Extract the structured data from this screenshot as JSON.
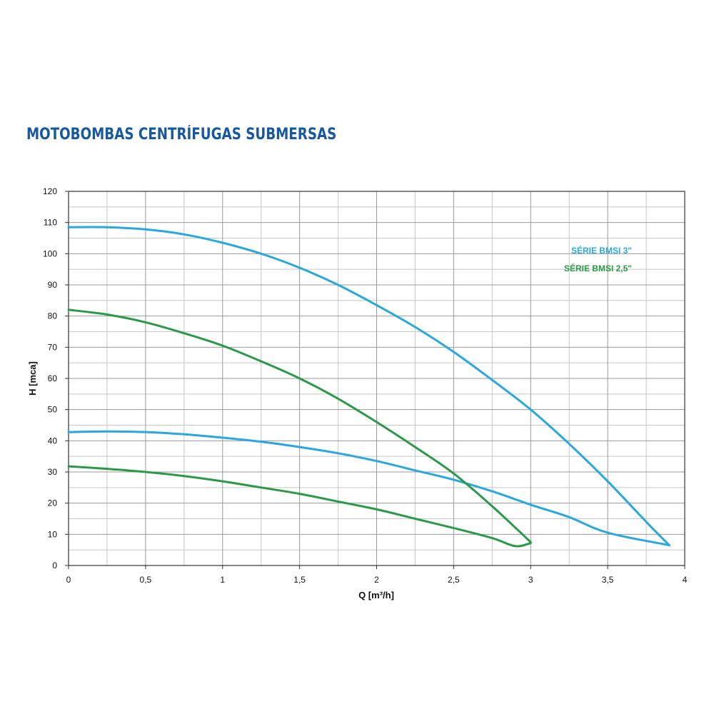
{
  "title": "MOTOBOMBAS CENTRÍFUGAS SUBMERSAS",
  "chart_data": {
    "type": "line",
    "xlabel": "Q [m³/h]",
    "ylabel": "H [mca]",
    "xlim": [
      0,
      4
    ],
    "ylim": [
      0,
      120
    ],
    "x_ticks": [
      0,
      0.5,
      1,
      1.5,
      2,
      2.5,
      3,
      3.5,
      4
    ],
    "x_tick_labels": [
      "0",
      "0,5",
      "1",
      "1,5",
      "2",
      "2,5",
      "3",
      "3,5",
      "4"
    ],
    "y_ticks": [
      0,
      10,
      20,
      30,
      40,
      50,
      60,
      70,
      80,
      90,
      100,
      110,
      120
    ],
    "y_tick_labels": [
      "0",
      "10",
      "20",
      "30",
      "40",
      "50",
      "60",
      "70",
      "80",
      "90",
      "100",
      "110",
      "120"
    ],
    "grid": true,
    "legend_position": "top-right",
    "legend": [
      {
        "label": "SÉRIE BMSI 3\"",
        "color": "#29a8e0"
      },
      {
        "label": "SÉRIE BMSI 2,5\"",
        "color": "#2b9a48"
      }
    ],
    "series": [
      {
        "legend": "SÉRIE BMSI 3\"",
        "color": "#29a8e0",
        "x": [
          0,
          0.25,
          0.5,
          0.75,
          1.0,
          1.25,
          1.5,
          1.75,
          2.0,
          2.25,
          2.5,
          2.75,
          3.0,
          3.25,
          3.5,
          3.75,
          3.9
        ],
        "y": [
          108.5,
          108.5,
          107.8,
          106.2,
          103.5,
          100.0,
          95.5,
          90.0,
          83.5,
          76.5,
          68.5,
          59.5,
          50.0,
          39.0,
          27.0,
          14.0,
          6.5
        ]
      },
      {
        "legend": "SÉRIE BMSI 3\"",
        "color": "#29a8e0",
        "x": [
          0,
          0.25,
          0.5,
          0.75,
          1.0,
          1.25,
          1.5,
          1.75,
          2.0,
          2.25,
          2.5,
          2.75,
          3.0,
          3.25,
          3.5,
          3.9
        ],
        "y": [
          42.8,
          43.0,
          42.8,
          42.1,
          41.0,
          39.7,
          38.0,
          36.0,
          33.5,
          30.5,
          27.5,
          23.8,
          19.5,
          15.5,
          10.5,
          6.5
        ]
      },
      {
        "legend": "SÉRIE BMSI 2,5\"",
        "color": "#2b9a48",
        "x": [
          0,
          0.25,
          0.5,
          0.75,
          1.0,
          1.25,
          1.5,
          1.75,
          2.0,
          2.25,
          2.5,
          2.75,
          3.0
        ],
        "y": [
          82.0,
          80.5,
          78.0,
          74.5,
          70.5,
          65.5,
          60.0,
          53.5,
          46.0,
          38.0,
          29.5,
          19.0,
          7.5
        ]
      },
      {
        "legend": "SÉRIE BMSI 2,5\"",
        "color": "#2b9a48",
        "x": [
          0,
          0.25,
          0.5,
          0.75,
          1.0,
          1.25,
          1.5,
          1.75,
          2.0,
          2.25,
          2.5,
          2.75,
          2.9,
          3.0
        ],
        "y": [
          31.8,
          31.0,
          30.0,
          28.7,
          27.0,
          25.0,
          23.0,
          20.5,
          18.0,
          15.0,
          12.0,
          8.8,
          6.2,
          7.2
        ]
      }
    ]
  }
}
